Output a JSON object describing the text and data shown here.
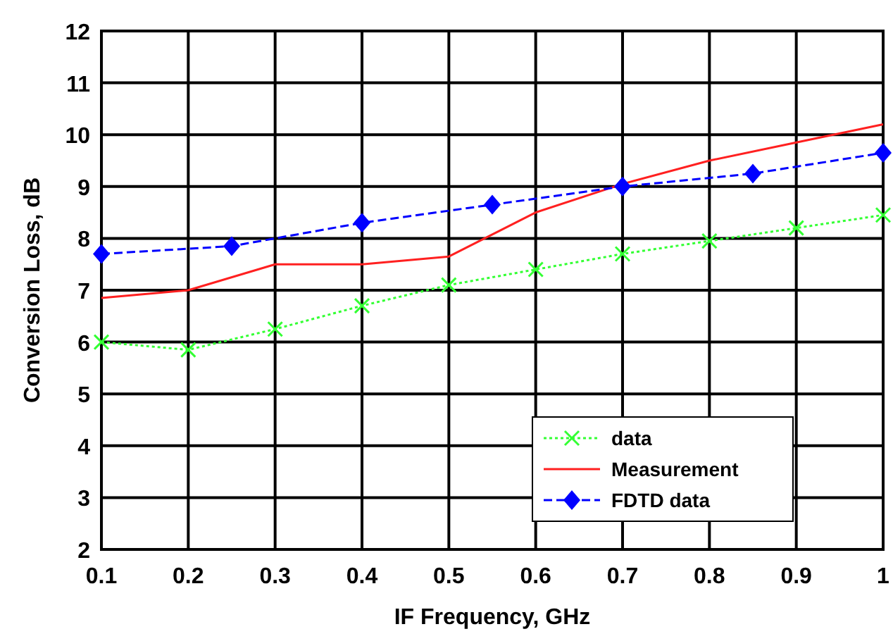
{
  "chart_data": {
    "type": "line",
    "xlabel": "IF Frequency, GHz",
    "ylabel": "Conversion Loss, dB",
    "xlim": [
      0.1,
      1
    ],
    "xticks": [
      0.1,
      0.2,
      0.3,
      0.4,
      0.5,
      0.6,
      0.7,
      0.8,
      0.9,
      {
        "value": 1,
        "label": "1"
      }
    ],
    "ylim": [
      2,
      12
    ],
    "yticks": [
      2,
      3,
      4,
      5,
      6,
      7,
      8,
      9,
      10,
      11,
      12
    ],
    "grid": true,
    "legend": "bottom right",
    "series": [
      {
        "name": "data",
        "color": "#33ff33",
        "marker": "cross",
        "line_style": "dotted",
        "x": [
          0.1,
          0.2,
          0.3,
          0.4,
          0.5,
          0.6,
          0.7,
          0.8,
          0.9,
          1
        ],
        "values": [
          6.0,
          5.85,
          6.25,
          6.7,
          7.1,
          7.4,
          7.7,
          7.95,
          8.2,
          8.45
        ]
      },
      {
        "name": "Measurement",
        "color": "#ff2020",
        "marker": "none",
        "line_style": "solid",
        "x": [
          0.1,
          0.2,
          0.3,
          0.4,
          0.5,
          0.6,
          0.7,
          0.8,
          0.9,
          1
        ],
        "values": [
          6.85,
          7.0,
          7.5,
          7.5,
          7.65,
          8.5,
          9.05,
          9.5,
          9.85,
          10.2
        ]
      },
      {
        "name": "FDTD data",
        "color": "#0000ff",
        "marker": "diamond",
        "line_style": "dashed",
        "x": [
          0.1,
          0.25,
          0.4,
          0.55,
          0.7,
          0.85,
          1
        ],
        "values": [
          7.7,
          7.85,
          8.3,
          8.65,
          9.0,
          9.25,
          9.65
        ]
      }
    ]
  }
}
